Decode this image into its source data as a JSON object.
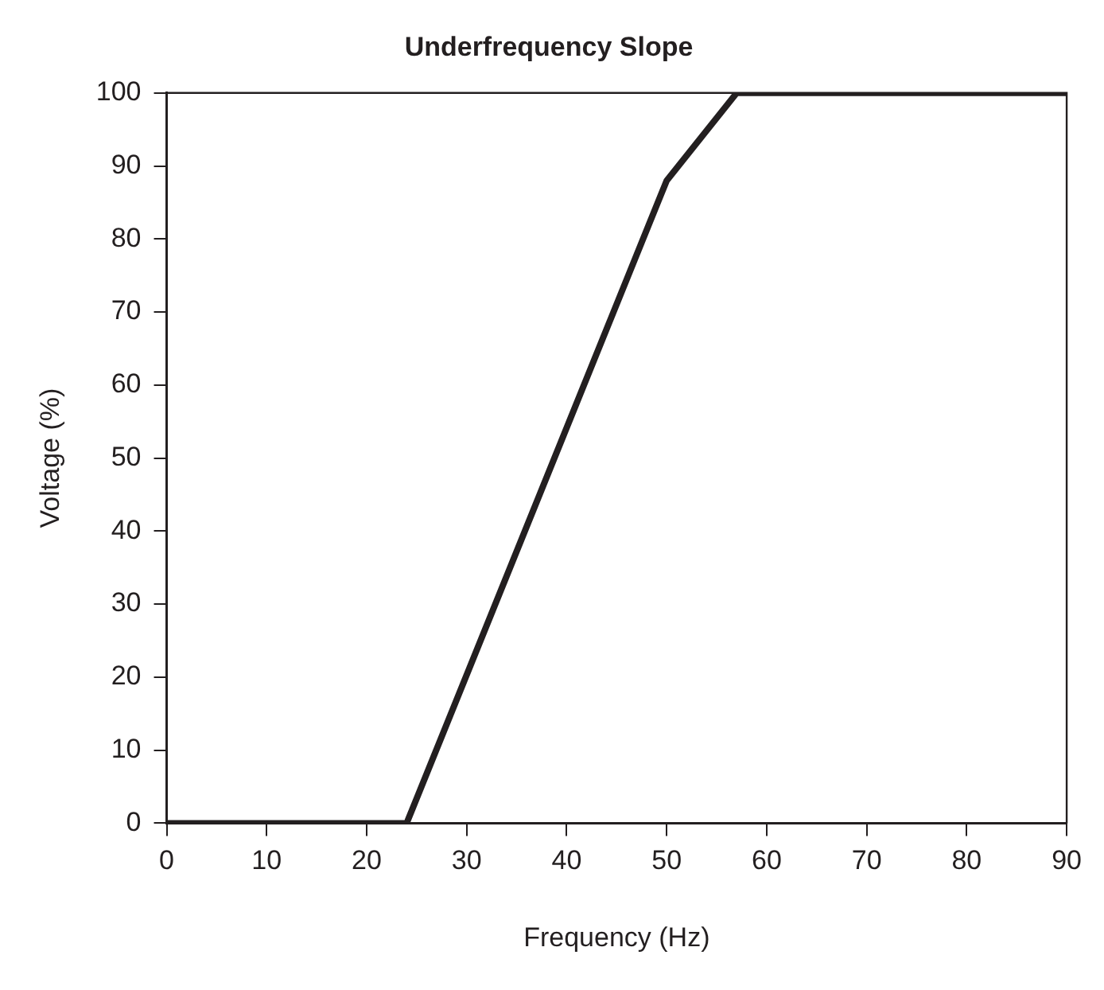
{
  "chart_data": {
    "type": "line",
    "title": "Underfrequency Slope",
    "xlabel": "Frequency (Hz)",
    "ylabel": "Voltage (%)",
    "x": [
      0,
      24,
      50,
      57,
      90
    ],
    "series": [
      {
        "color": "#231f20",
        "values": [
          0,
          0,
          88,
          100,
          100
        ]
      }
    ],
    "xlim": [
      0,
      90
    ],
    "xticks": [
      0,
      10,
      20,
      30,
      40,
      50,
      60,
      70,
      80,
      90
    ],
    "ylim": [
      0,
      100
    ],
    "yticks": [
      0,
      10,
      20,
      30,
      40,
      50,
      60,
      70,
      80,
      90,
      100
    ],
    "grid": false,
    "legend": false,
    "marker": "none",
    "line_style": "solid"
  }
}
